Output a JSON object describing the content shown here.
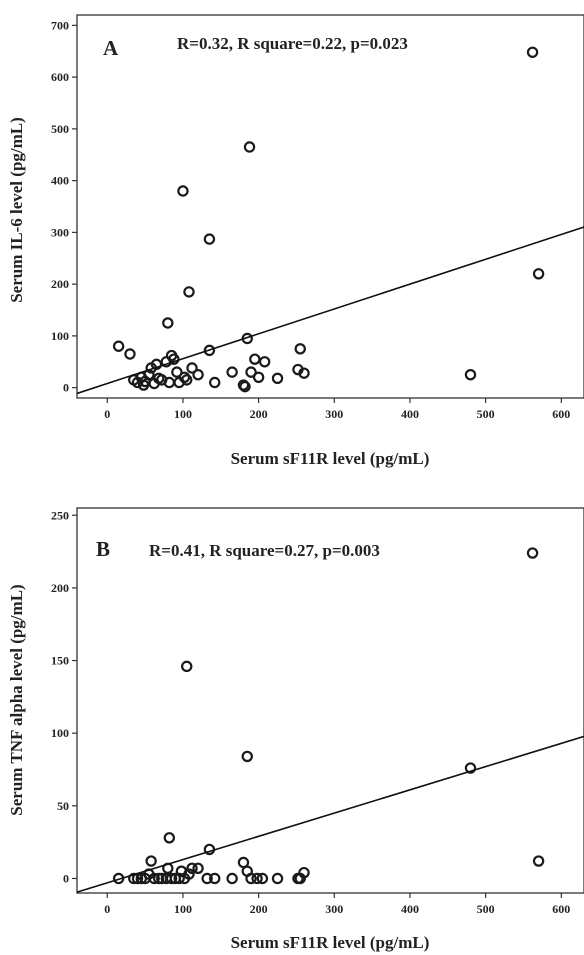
{
  "chart_data": [
    {
      "type": "scatter",
      "panel_label": "A",
      "annotation": "R=0.32, R square=0.22, p=0.023",
      "xlabel": "Serum sF11R level (pg/mL)",
      "ylabel": "Serum IL-6 level (pg/mL)",
      "xlim": [
        -40,
        630
      ],
      "ylim": [
        -20,
        720
      ],
      "xticks": [
        0,
        100,
        200,
        300,
        400,
        500,
        600
      ],
      "yticks": [
        0,
        100,
        200,
        300,
        400,
        500,
        600,
        700
      ],
      "grid": false,
      "fit_line": {
        "intercept": 8,
        "slope": 0.48
      },
      "points": [
        [
          15,
          80
        ],
        [
          30,
          65
        ],
        [
          35,
          15
        ],
        [
          40,
          10
        ],
        [
          45,
          20
        ],
        [
          48,
          5
        ],
        [
          50,
          12
        ],
        [
          55,
          25
        ],
        [
          58,
          38
        ],
        [
          62,
          8
        ],
        [
          65,
          45
        ],
        [
          68,
          18
        ],
        [
          72,
          15
        ],
        [
          78,
          50
        ],
        [
          80,
          125
        ],
        [
          82,
          10
        ],
        [
          85,
          62
        ],
        [
          88,
          55
        ],
        [
          92,
          30
        ],
        [
          95,
          10
        ],
        [
          100,
          380
        ],
        [
          102,
          20
        ],
        [
          105,
          15
        ],
        [
          108,
          185
        ],
        [
          112,
          38
        ],
        [
          120,
          25
        ],
        [
          135,
          72
        ],
        [
          135,
          287
        ],
        [
          142,
          10
        ],
        [
          165,
          30
        ],
        [
          180,
          5
        ],
        [
          182,
          2
        ],
        [
          185,
          95
        ],
        [
          188,
          465
        ],
        [
          190,
          30
        ],
        [
          195,
          55
        ],
        [
          200,
          20
        ],
        [
          208,
          50
        ],
        [
          225,
          18
        ],
        [
          252,
          35
        ],
        [
          255,
          75
        ],
        [
          260,
          28
        ],
        [
          480,
          25
        ],
        [
          562,
          648
        ],
        [
          570,
          220
        ]
      ]
    },
    {
      "type": "scatter",
      "panel_label": "B",
      "annotation": "R=0.41, R square=0.27, p=0.003",
      "xlabel": "Serum sF11R level (pg/mL)",
      "ylabel": "Serum TNF alpha level (pg/mL)",
      "xlim": [
        -40,
        630
      ],
      "ylim": [
        -10,
        255
      ],
      "xticks": [
        0,
        100,
        200,
        300,
        400,
        500,
        600
      ],
      "yticks": [
        0,
        50,
        100,
        150,
        200,
        250
      ],
      "grid": false,
      "fit_line": {
        "intercept": -3,
        "slope": 0.16
      },
      "points": [
        [
          15,
          0
        ],
        [
          35,
          0
        ],
        [
          40,
          0
        ],
        [
          45,
          0
        ],
        [
          50,
          0
        ],
        [
          55,
          3
        ],
        [
          58,
          12
        ],
        [
          62,
          0
        ],
        [
          68,
          0
        ],
        [
          72,
          0
        ],
        [
          78,
          0
        ],
        [
          80,
          7
        ],
        [
          82,
          28
        ],
        [
          85,
          0
        ],
        [
          90,
          0
        ],
        [
          95,
          0
        ],
        [
          98,
          5
        ],
        [
          102,
          0
        ],
        [
          105,
          146
        ],
        [
          108,
          3
        ],
        [
          112,
          7
        ],
        [
          120,
          7
        ],
        [
          132,
          0
        ],
        [
          135,
          20
        ],
        [
          142,
          0
        ],
        [
          165,
          0
        ],
        [
          180,
          11
        ],
        [
          185,
          84
        ],
        [
          185,
          5
        ],
        [
          190,
          0
        ],
        [
          198,
          0
        ],
        [
          205,
          0
        ],
        [
          225,
          0
        ],
        [
          252,
          0
        ],
        [
          255,
          0
        ],
        [
          260,
          4
        ],
        [
          480,
          76
        ],
        [
          562,
          224
        ],
        [
          570,
          12
        ]
      ]
    }
  ]
}
